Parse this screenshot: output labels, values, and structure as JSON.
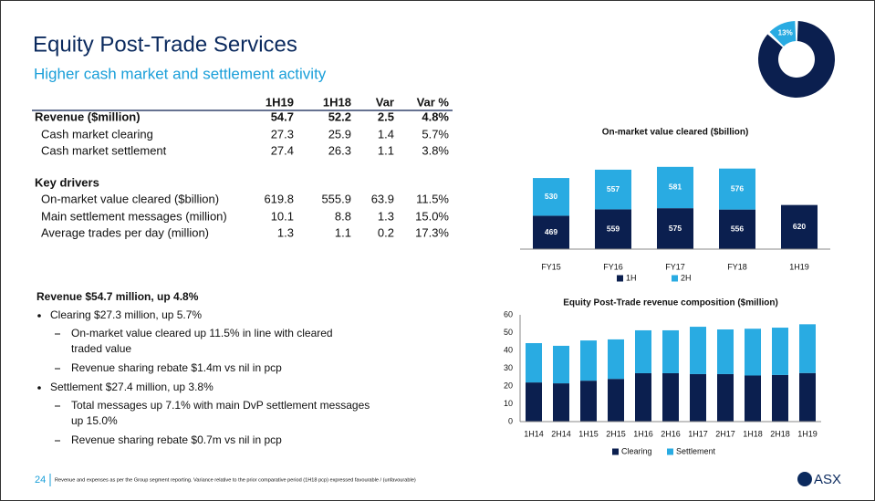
{
  "header": {
    "title": "Equity Post-Trade Services",
    "subtitle": "Higher cash market and settlement activity"
  },
  "table": {
    "columns": [
      "1H19",
      "1H18",
      "Var",
      "Var %"
    ],
    "rows": [
      {
        "label": "Revenue ($million)",
        "values": [
          "54.7",
          "52.2",
          "2.5",
          "4.8%"
        ],
        "bold": true
      },
      {
        "label": "Cash market clearing",
        "values": [
          "27.3",
          "25.9",
          "1.4",
          "5.7%"
        ]
      },
      {
        "label": "Cash market settlement",
        "values": [
          "27.4",
          "26.3",
          "1.1",
          "3.8%"
        ]
      },
      {
        "label": "Key drivers",
        "bold": true
      },
      {
        "label": "On-market value cleared ($billion)",
        "values": [
          "619.8",
          "555.9",
          "63.9",
          "11.5%"
        ]
      },
      {
        "label": "Main settlement messages (million)",
        "values": [
          "10.1",
          "8.8",
          "1.3",
          "15.0%"
        ]
      },
      {
        "label": "Average trades per day (million)",
        "values": [
          "1.3",
          "1.1",
          "0.2",
          "17.3%"
        ]
      }
    ]
  },
  "commentary": {
    "heading": "Revenue $54.7 million, up 4.8%",
    "items": [
      {
        "lines": [
          "Clearing $27.3 million, up 5.7%"
        ],
        "sub": [
          {
            "lines": [
              "On-market value cleared up 11.5% in line with cleared",
              "traded value"
            ]
          },
          {
            "lines": [
              "Revenue sharing rebate $1.4m vs nil in pcp"
            ]
          }
        ]
      },
      {
        "lines": [
          "Settlement $27.4 million, up 3.8%"
        ],
        "sub": [
          {
            "lines": [
              "Total messages up 7.1% with main DvP settlement messages",
              "up 15.0%"
            ]
          },
          {
            "lines": [
              "Revenue sharing rebate $0.7m vs nil in pcp"
            ]
          }
        ]
      }
    ]
  },
  "footer": {
    "page": "24",
    "note": "Revenue and expenses as per the Group segment reporting. Variance relative to the prior comparative period (1H18 pcp) expressed favourable / (unfavourable)",
    "logo": "ASX"
  },
  "chart_data": [
    {
      "type": "pie",
      "donut": true,
      "values": [
        13,
        87
      ],
      "value_labels": [
        "13%",
        null
      ],
      "colors": [
        "#29abe2",
        "#0b1f4f"
      ]
    },
    {
      "type": "stacked_bar",
      "title": "On-market value cleared ($billion)",
      "categories": [
        "FY15",
        "FY16",
        "FY17",
        "FY18",
        "1H19"
      ],
      "series": [
        {
          "name": "1H",
          "color": "#0b1f4f",
          "values": [
            469,
            559,
            575,
            556,
            620
          ]
        },
        {
          "name": "2H",
          "color": "#29abe2",
          "values": [
            530,
            557,
            581,
            576,
            null
          ]
        }
      ],
      "data_labels": true
    },
    {
      "type": "stacked_bar",
      "title": "Equity Post-Trade revenue composition ($million)",
      "categories": [
        "1H14",
        "2H14",
        "1H15",
        "2H15",
        "1H16",
        "2H16",
        "1H17",
        "2H17",
        "1H18",
        "2H18",
        "1H19"
      ],
      "series": [
        {
          "name": "Clearing",
          "color": "#0b1f4f",
          "values": [
            22,
            21.5,
            23,
            24,
            27.2,
            27.2,
            26.7,
            26.7,
            25.9,
            26.2,
            27.3
          ]
        },
        {
          "name": "Settlement",
          "color": "#29abe2",
          "values": [
            22.1,
            21.1,
            22.6,
            22.2,
            24.1,
            24.1,
            26.6,
            25.1,
            26.3,
            26.6,
            27.4
          ]
        }
      ],
      "ylim": [
        0,
        60
      ],
      "yticks": [
        0,
        10,
        20,
        30,
        40,
        50,
        60
      ]
    }
  ]
}
